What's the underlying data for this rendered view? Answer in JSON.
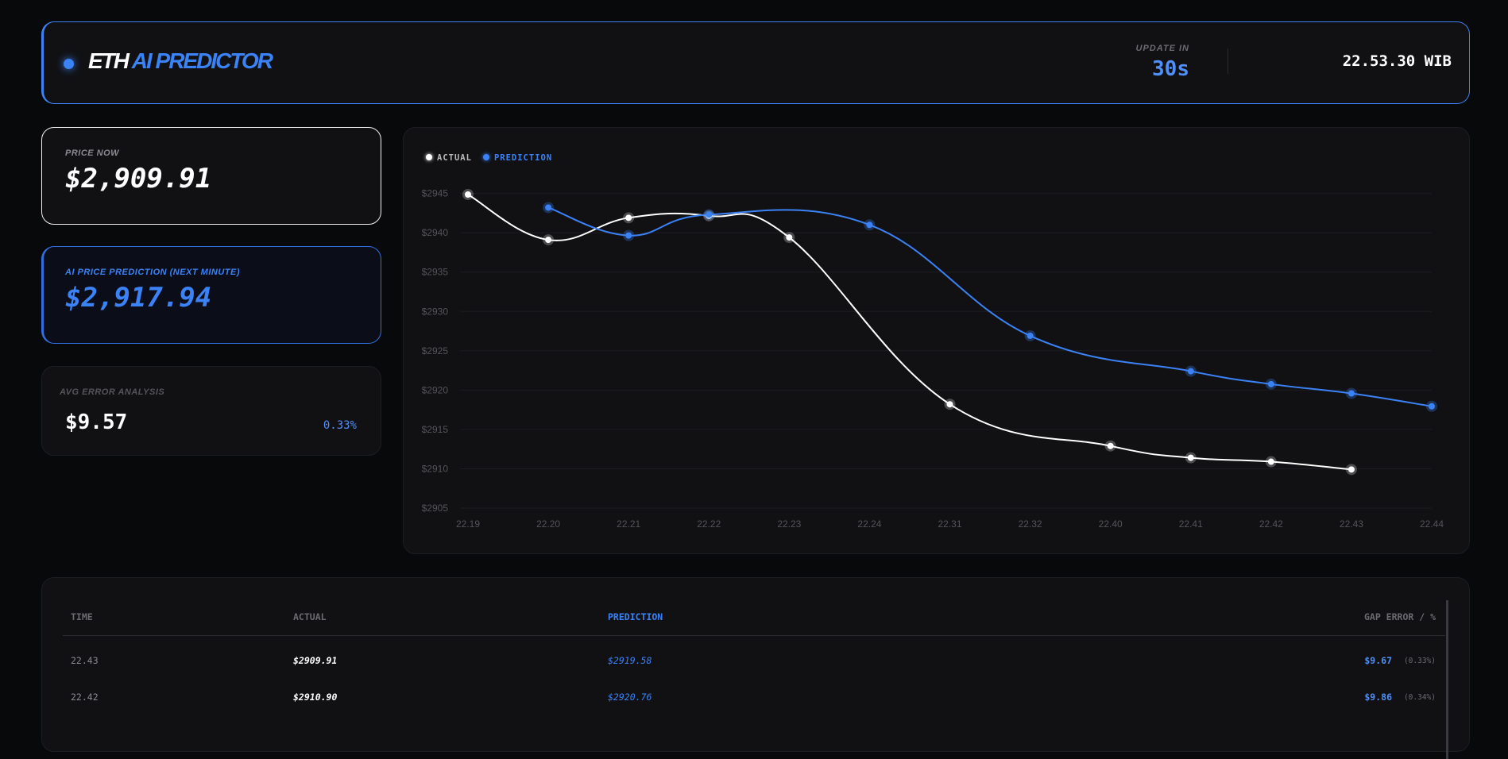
{
  "header": {
    "title_main": "ETH",
    "title_accent": "AI PREDICTOR",
    "update_label": "UPDATE IN",
    "update_value": "30s",
    "clock": "22.53.30 WIB"
  },
  "price_now": {
    "label": "PRICE NOW",
    "value": "$2,909.91"
  },
  "prediction": {
    "label": "AI PRICE PREDICTION (NEXT MINUTE)",
    "value": "$2,917.94"
  },
  "avg_error": {
    "label": "AVG ERROR ANALYSIS",
    "value": "$9.57",
    "percent": "0.33%"
  },
  "colors": {
    "accent": "#3b82f6",
    "actual": "#ffffff"
  },
  "chart_data": {
    "type": "line",
    "legend": [
      "ACTUAL",
      "PREDICTION"
    ],
    "categories": [
      "22.19",
      "22.20",
      "22.21",
      "22.22",
      "22.23",
      "22.24",
      "22.31",
      "22.32",
      "22.40",
      "22.41",
      "22.42",
      "22.43",
      "22.44"
    ],
    "series": [
      {
        "name": "ACTUAL",
        "values": [
          2944.86,
          2939.1,
          2941.9,
          2942.15,
          2939.4,
          null,
          2918.2,
          null,
          2912.9,
          2911.4,
          2910.9,
          2909.91,
          null
        ]
      },
      {
        "name": "PREDICTION",
        "values": [
          null,
          2943.2,
          2939.65,
          2942.3,
          null,
          2941.0,
          null,
          2926.9,
          null,
          2922.4,
          2920.76,
          2919.58,
          2917.94
        ]
      }
    ],
    "yticks": [
      "$2945",
      "$2940",
      "$2935",
      "$2930",
      "$2925",
      "$2920",
      "$2915",
      "$2910",
      "$2905"
    ],
    "ylim": [
      2905,
      2945
    ],
    "grid": true,
    "legend_position": "top-left"
  },
  "table": {
    "headers": [
      "TIME",
      "ACTUAL",
      "PREDICTION",
      "GAP ERROR / %"
    ],
    "rows": [
      {
        "time": "22.43",
        "actual": "$2909.91",
        "prediction": "$2919.58",
        "gap": "$9.67",
        "pct": "(0.33%)"
      },
      {
        "time": "22.42",
        "actual": "$2910.90",
        "prediction": "$2920.76",
        "gap": "$9.86",
        "pct": "(0.34%)"
      }
    ]
  }
}
